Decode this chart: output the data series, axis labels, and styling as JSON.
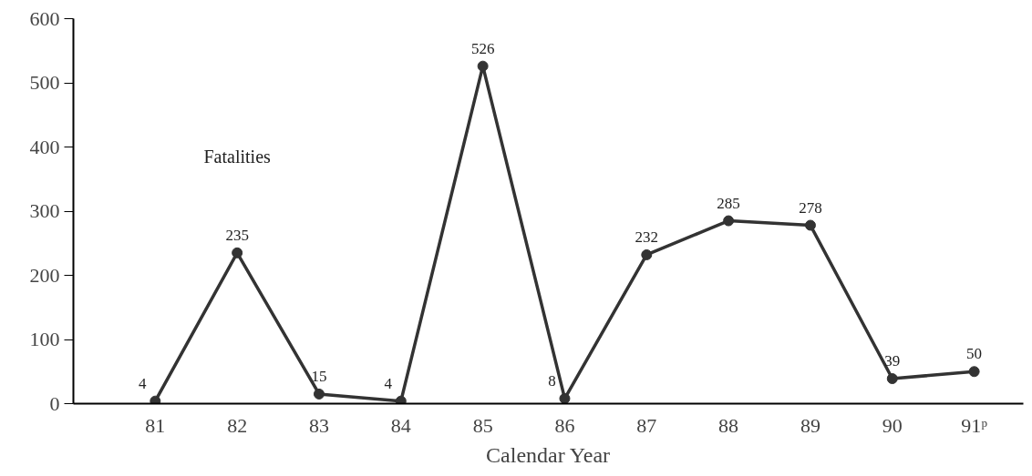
{
  "chart_data": {
    "type": "line",
    "xlabel": "Calendar Year",
    "categories": [
      "81",
      "82",
      "83",
      "84",
      "85",
      "86",
      "87",
      "88",
      "89",
      "90",
      "91ᵖ"
    ],
    "series": [
      {
        "name": "Fatalities",
        "color": "#333333",
        "values": [
          4,
          235,
          15,
          4,
          526,
          8,
          232,
          285,
          278,
          39,
          50
        ]
      }
    ],
    "ylim": [
      0,
      600
    ],
    "yticks": [
      0,
      100,
      200,
      300,
      400,
      500,
      600
    ],
    "data_labels": true,
    "marker": "circle",
    "line_style": "solid",
    "grid": false
  }
}
